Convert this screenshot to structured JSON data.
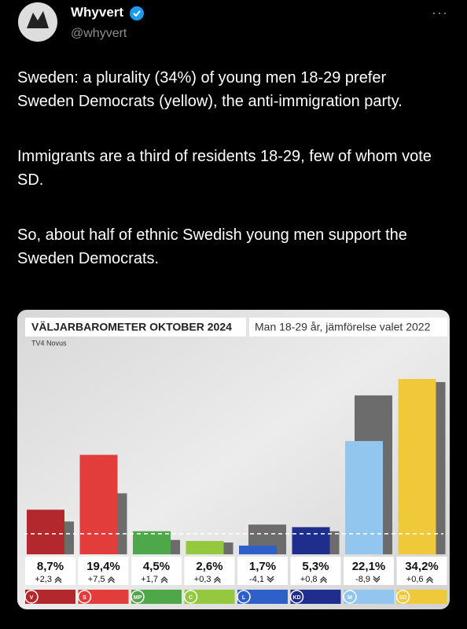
{
  "tweet": {
    "author": "Whyvert",
    "handle": "@whyvert",
    "paragraphs": [
      "Sweden: a plurality (34%) of young men 18-29 prefer Sweden Democrats (yellow), the anti-immigration party.",
      "Immigrants are a third of residents 18-29, few of whom vote SD.",
      "So, about half of ethnic Swedish young men support the Sweden Democrats."
    ]
  },
  "chart_data": {
    "type": "bar",
    "title": "VÄLJARBAROMETER OKTOBER 2024",
    "subtitle": "Man 18-29 år, jämförelse valet 2022",
    "source": "TV4 Novus",
    "categories": [
      "V",
      "S",
      "MP",
      "C",
      "L",
      "KD",
      "M",
      "SD"
    ],
    "values": [
      8.7,
      19.4,
      4.5,
      2.6,
      1.7,
      5.3,
      22.1,
      34.2
    ],
    "value_labels": [
      "8,7%",
      "19,4%",
      "4,5%",
      "2,6%",
      "1,7%",
      "5,3%",
      "22,1%",
      "34,2%"
    ],
    "colors": [
      "#b3282d",
      "#e23d3b",
      "#4ea84a",
      "#93c83f",
      "#2f5fc8",
      "#1f2d8c",
      "#92c6ee",
      "#f0c93b"
    ],
    "previous_values": [
      6.4,
      11.9,
      2.8,
      2.3,
      5.8,
      4.5,
      31.0,
      33.6
    ],
    "previous_color": "#6c6c6c",
    "change": [
      2.3,
      7.5,
      1.7,
      0.3,
      -4.1,
      0.8,
      -8.9,
      0.6
    ],
    "change_labels": [
      "+2,3",
      "+7,5",
      "+1,7",
      "+0,3",
      "-4,1",
      "+0,8",
      "-8,9",
      "+0,6"
    ],
    "reference_line": 4
  }
}
